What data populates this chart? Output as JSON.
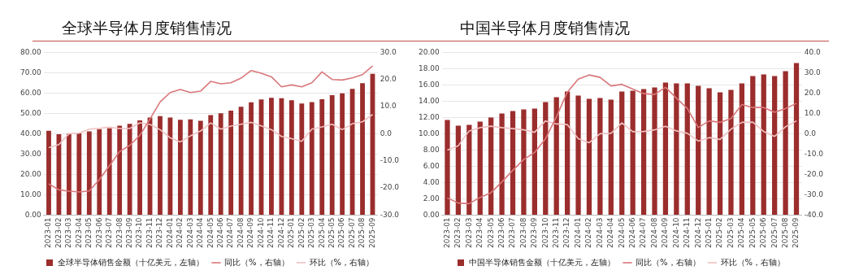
{
  "chart_data": [
    {
      "type": "bar",
      "title": "全球半导体月度销售情况",
      "categories": [
        "2023-01",
        "2023-02",
        "2023-03",
        "2023-04",
        "2023-05",
        "2023-06",
        "2023-07",
        "2023-08",
        "2023-09",
        "2023-10",
        "2023-11",
        "2023-12",
        "2024-01",
        "2024-02",
        "2024-03",
        "2024-04",
        "2024-05",
        "2024-06",
        "2024-07",
        "2024-08",
        "2024-09",
        "2024-10",
        "2024-11",
        "2024-12",
        "2025-01",
        "2025-02",
        "2025-03",
        "2025-04",
        "2025-05",
        "2025-06",
        "2025-07",
        "2025-08",
        "2025-09"
      ],
      "series": [
        {
          "name": "全球半导体销售金额（十亿美元，左轴）",
          "color": "#9b2d2d",
          "values": [
            41.5,
            39.8,
            40.0,
            40.2,
            41.2,
            42.3,
            42.8,
            44.0,
            44.9,
            46.6,
            48.0,
            48.7,
            48.0,
            46.9,
            47.1,
            46.4,
            49.2,
            50.1,
            51.4,
            53.3,
            55.5,
            56.9,
            57.7,
            57.5,
            56.5,
            54.9,
            55.6,
            57.0,
            59.0,
            59.9,
            62.1,
            64.9,
            69.5
          ]
        },
        {
          "name": "同比（%，右轴）",
          "type": "line",
          "axis": "y2",
          "color": "#d9777a",
          "values": [
            -18.5,
            -20.7,
            -21.2,
            -21.5,
            -21.1,
            -16.9,
            -11.8,
            -6.6,
            -4.3,
            -0.6,
            5.4,
            11.7,
            15.2,
            16.3,
            15.2,
            15.7,
            19.3,
            18.4,
            18.8,
            20.5,
            23.3,
            22.3,
            21.0,
            17.3,
            18.0,
            17.3,
            18.8,
            22.8,
            20.0,
            19.8,
            20.6,
            21.8,
            25.0
          ]
        },
        {
          "name": "环比（%，右轴）",
          "type": "line",
          "axis": "y2",
          "color": "#efc2c2",
          "values": [
            -5.1,
            -4.0,
            0.0,
            0.2,
            1.7,
            2.0,
            2.4,
            1.9,
            1.9,
            4.0,
            3.4,
            1.5,
            -1.5,
            -3.0,
            -0.8,
            1.0,
            4.0,
            1.7,
            2.8,
            3.5,
            4.2,
            2.9,
            1.5,
            -1.0,
            -1.8,
            -2.8,
            1.7,
            2.5,
            3.5,
            1.5,
            3.7,
            4.4,
            7.1
          ]
        }
      ],
      "ylim": [
        0,
        80
      ],
      "yticks": [
        {
          "value": 0,
          "label": "0.00"
        },
        {
          "value": 10,
          "label": "10.00"
        },
        {
          "value": 20,
          "label": "20.00"
        },
        {
          "value": 30,
          "label": "30.00"
        },
        {
          "value": 40,
          "label": "40.00"
        },
        {
          "value": 50,
          "label": "50.00"
        },
        {
          "value": 60,
          "label": "60.00"
        },
        {
          "value": 70,
          "label": "70.00"
        },
        {
          "value": 80,
          "label": "80.00"
        }
      ],
      "y2lim": [
        -30,
        30
      ],
      "y2ticks": [
        {
          "value": -30,
          "label": "-30.0"
        },
        {
          "value": -20,
          "label": "-20.0"
        },
        {
          "value": -10,
          "label": "-10.0"
        },
        {
          "value": 0,
          "label": "0.0"
        },
        {
          "value": 10,
          "label": "10.0"
        },
        {
          "value": 20,
          "label": "20.0"
        },
        {
          "value": 30,
          "label": "30.0"
        }
      ],
      "grid": "y",
      "legend": "bottom",
      "marker": "none"
    },
    {
      "type": "bar",
      "title": "中国半导体月度销售情况",
      "categories": [
        "2023-01",
        "2023-02",
        "2023-03",
        "2023-04",
        "2023-05",
        "2023-06",
        "2023-07",
        "2023-08",
        "2023-09",
        "2023-10",
        "2023-11",
        "2023-12",
        "2024-01",
        "2024-02",
        "2024-03",
        "2024-04",
        "2024-05",
        "2024-06",
        "2024-07",
        "2024-08",
        "2024-09",
        "2024-10",
        "2024-11",
        "2024-12",
        "2025-01",
        "2025-02",
        "2025-03",
        "2025-04",
        "2025-05",
        "2025-06",
        "2025-07",
        "2025-08",
        "2025-09"
      ],
      "series": [
        {
          "name": "中国半导体销售金额（十亿美元，左轴）",
          "color": "#9b2d2d",
          "values": [
            11.7,
            11.0,
            11.1,
            11.5,
            12.0,
            12.5,
            12.8,
            13.0,
            13.1,
            13.9,
            14.5,
            15.2,
            14.7,
            14.3,
            14.4,
            14.2,
            15.2,
            15.3,
            15.5,
            15.7,
            16.3,
            16.2,
            16.2,
            15.9,
            15.6,
            15.1,
            15.4,
            16.2,
            17.1,
            17.3,
            17.1,
            17.7,
            18.7
          ]
        },
        {
          "name": "同比（%，右轴）",
          "type": "line",
          "axis": "y2",
          "color": "#d9777a",
          "values": [
            -31.6,
            -34.1,
            -34.4,
            -31.3,
            -29.0,
            -23.7,
            -18.0,
            -12.7,
            -9.2,
            -2.4,
            8.3,
            20.5,
            26.9,
            28.9,
            27.7,
            23.5,
            24.3,
            22.0,
            19.7,
            19.3,
            22.8,
            17.5,
            12.4,
            3.0,
            6.3,
            5.6,
            7.5,
            14.4,
            12.9,
            12.9,
            10.6,
            12.4,
            14.9
          ]
        },
        {
          "name": "环比（%，右轴）",
          "type": "line",
          "axis": "y2",
          "color": "#efc2c2",
          "values": [
            -8.0,
            -5.9,
            1.4,
            3.0,
            3.7,
            3.0,
            2.5,
            1.9,
            0.7,
            6.3,
            4.8,
            4.5,
            -2.4,
            -4.4,
            0.0,
            0.2,
            5.3,
            1.0,
            1.1,
            1.9,
            3.7,
            1.4,
            0.2,
            -3.6,
            -1.9,
            -2.8,
            2.2,
            5.6,
            5.7,
            1.1,
            -1.3,
            3.4,
            6.3
          ]
        }
      ],
      "ylim": [
        0,
        20
      ],
      "yticks": [
        {
          "value": 0,
          "label": "0.00"
        },
        {
          "value": 2,
          "label": "2.00"
        },
        {
          "value": 4,
          "label": "4.00"
        },
        {
          "value": 6,
          "label": "6.00"
        },
        {
          "value": 8,
          "label": "8.00"
        },
        {
          "value": 10,
          "label": "10.00"
        },
        {
          "value": 12,
          "label": "12.00"
        },
        {
          "value": 14,
          "label": "14.00"
        },
        {
          "value": 16,
          "label": "16.00"
        },
        {
          "value": 18,
          "label": "18.00"
        },
        {
          "value": 20,
          "label": "20.00"
        }
      ],
      "y2lim": [
        -40,
        40
      ],
      "y2ticks": [
        {
          "value": -40,
          "label": "-40.0"
        },
        {
          "value": -30,
          "label": "-30.0"
        },
        {
          "value": -20,
          "label": "-20.0"
        },
        {
          "value": -10,
          "label": "-10.0"
        },
        {
          "value": 0,
          "label": "0.0"
        },
        {
          "value": 10,
          "label": "10.0"
        },
        {
          "value": 20,
          "label": "20.0"
        },
        {
          "value": 30,
          "label": "30.0"
        },
        {
          "value": 40,
          "label": "40.0"
        }
      ],
      "grid": "y",
      "legend": "bottom",
      "marker": "none"
    }
  ]
}
